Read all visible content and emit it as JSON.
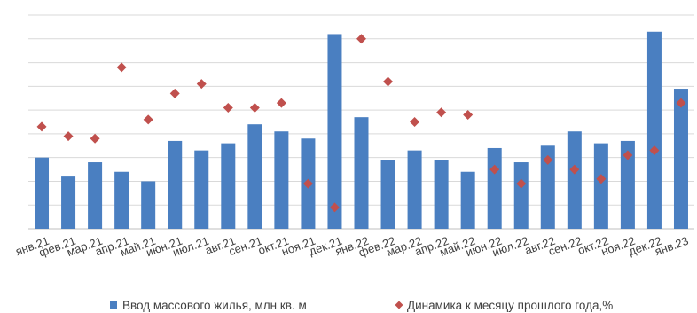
{
  "chart_data": {
    "type": "bar+scatter",
    "categories": [
      "янв.21",
      "фев.21",
      "мар.21",
      "апр.21",
      "май.21",
      "июн.21",
      "июл.21",
      "авг.21",
      "сен.21",
      "окт.21",
      "ноя.21",
      "дек.21",
      "янв.22",
      "фев.22",
      "мар.22",
      "апр.22",
      "май.22",
      "июн.22",
      "июл.22",
      "авг.22",
      "сен.22",
      "окт.22",
      "ноя.22",
      "дек.22",
      "янв.23"
    ],
    "ylim": [
      0,
      9.3
    ],
    "gridlines": [
      0,
      1,
      2,
      3,
      4,
      5,
      6,
      7,
      8,
      9
    ],
    "grid": true,
    "legend_position": "bottom",
    "series": [
      {
        "name": "Ввод массового жилья, млн кв. м",
        "kind": "bar",
        "color": "#4a7fc1",
        "values": [
          3.0,
          2.2,
          2.8,
          2.4,
          2.0,
          3.7,
          3.3,
          3.6,
          4.4,
          4.1,
          3.8,
          8.2,
          4.7,
          2.9,
          3.3,
          2.9,
          2.4,
          3.4,
          2.8,
          3.5,
          4.1,
          3.6,
          3.7,
          8.3,
          5.9
        ]
      },
      {
        "name": "Динамика к месяцу прошлого года,%",
        "kind": "scatter",
        "marker": "diamond",
        "color": "#c0504d",
        "values": [
          4.3,
          3.9,
          3.8,
          6.8,
          4.6,
          5.7,
          6.1,
          5.1,
          5.1,
          5.3,
          1.9,
          0.9,
          8.0,
          6.2,
          4.5,
          4.9,
          4.8,
          2.5,
          1.9,
          2.9,
          2.5,
          2.1,
          3.1,
          3.3,
          5.3
        ]
      }
    ]
  }
}
